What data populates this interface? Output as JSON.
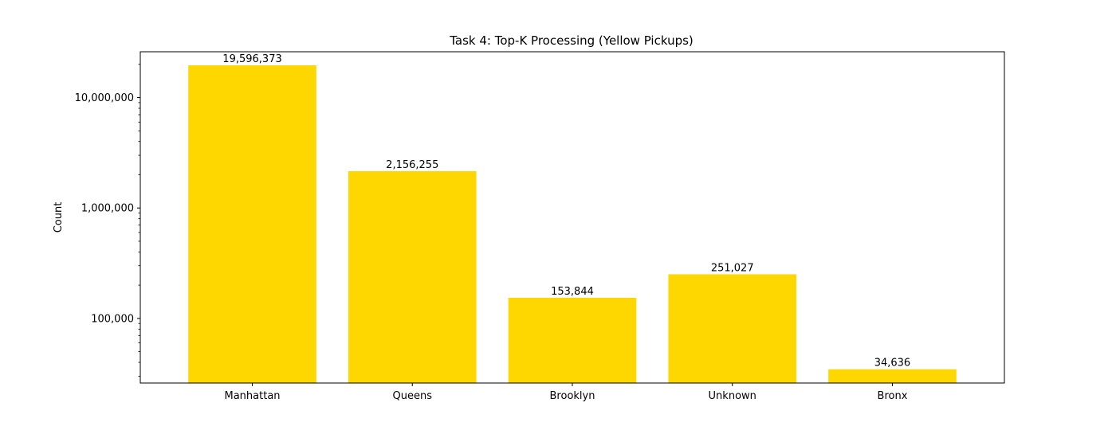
{
  "chart_data": {
    "type": "bar",
    "title": "Task 4: Top-K Processing (Yellow Pickups)",
    "xlabel": "",
    "ylabel": "Count",
    "yscale": "log",
    "ylim": [
      26000,
      26000000
    ],
    "categories": [
      "Manhattan",
      "Queens",
      "Brooklyn",
      "Unknown",
      "Bronx"
    ],
    "values": [
      19596373,
      2156255,
      153844,
      251027,
      34636
    ],
    "data_labels": [
      "19,596,373",
      "2,156,255",
      "153,844",
      "251,027",
      "34,636"
    ],
    "yticks": [
      {
        "value": 100000,
        "label": "100,000"
      },
      {
        "value": 1000000,
        "label": "1,000,000"
      },
      {
        "value": 10000000,
        "label": "10,000,000"
      }
    ],
    "bar_color": "#FFD700",
    "grid": false,
    "legend": "none"
  }
}
